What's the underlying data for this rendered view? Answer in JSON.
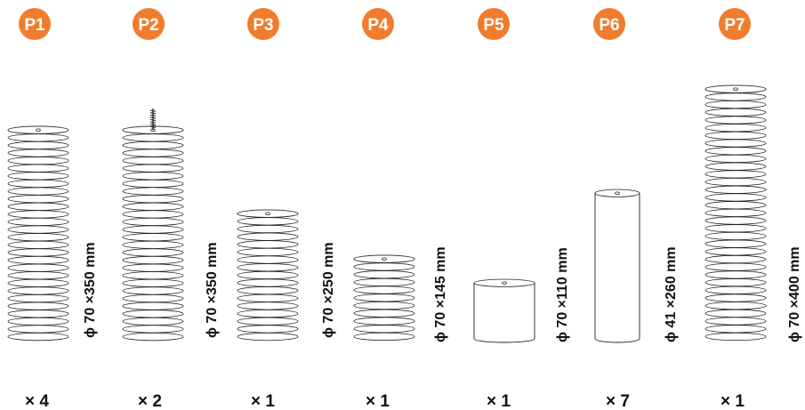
{
  "parts": [
    {
      "label": "P1",
      "dimension": "ϕ 70 ×350 mm",
      "quantity": "× 4",
      "shape": "ribbed",
      "rings": 28,
      "has_bolt": false
    },
    {
      "label": "P2",
      "dimension": "ϕ 70 ×350 mm",
      "quantity": "× 2",
      "shape": "ribbed",
      "rings": 28,
      "has_bolt": true
    },
    {
      "label": "P3",
      "dimension": "ϕ 70 ×250 mm",
      "quantity": "× 1",
      "shape": "ribbed",
      "rings": 17,
      "has_bolt": false
    },
    {
      "label": "P4",
      "dimension": "ϕ 70 ×145 mm",
      "quantity": "× 1",
      "shape": "ribbed",
      "rings": 11,
      "has_bolt": false
    },
    {
      "label": "P5",
      "dimension": "ϕ 70 ×110 mm",
      "quantity": "× 1",
      "shape": "cylinder",
      "rings": 0,
      "has_bolt": false
    },
    {
      "label": "P6",
      "dimension": "ϕ 41 ×260 mm",
      "quantity": "× 7",
      "shape": "cylinder",
      "rings": 0,
      "has_bolt": false
    },
    {
      "label": "P7",
      "dimension": "ϕ 70 ×400 mm",
      "quantity": "× 1",
      "shape": "ribbed",
      "rings": 33,
      "has_bolt": false
    }
  ],
  "colors": {
    "badge": "#ef7d2d",
    "badge_text": "#ffffff",
    "line": "#222222",
    "text": "#111111"
  }
}
